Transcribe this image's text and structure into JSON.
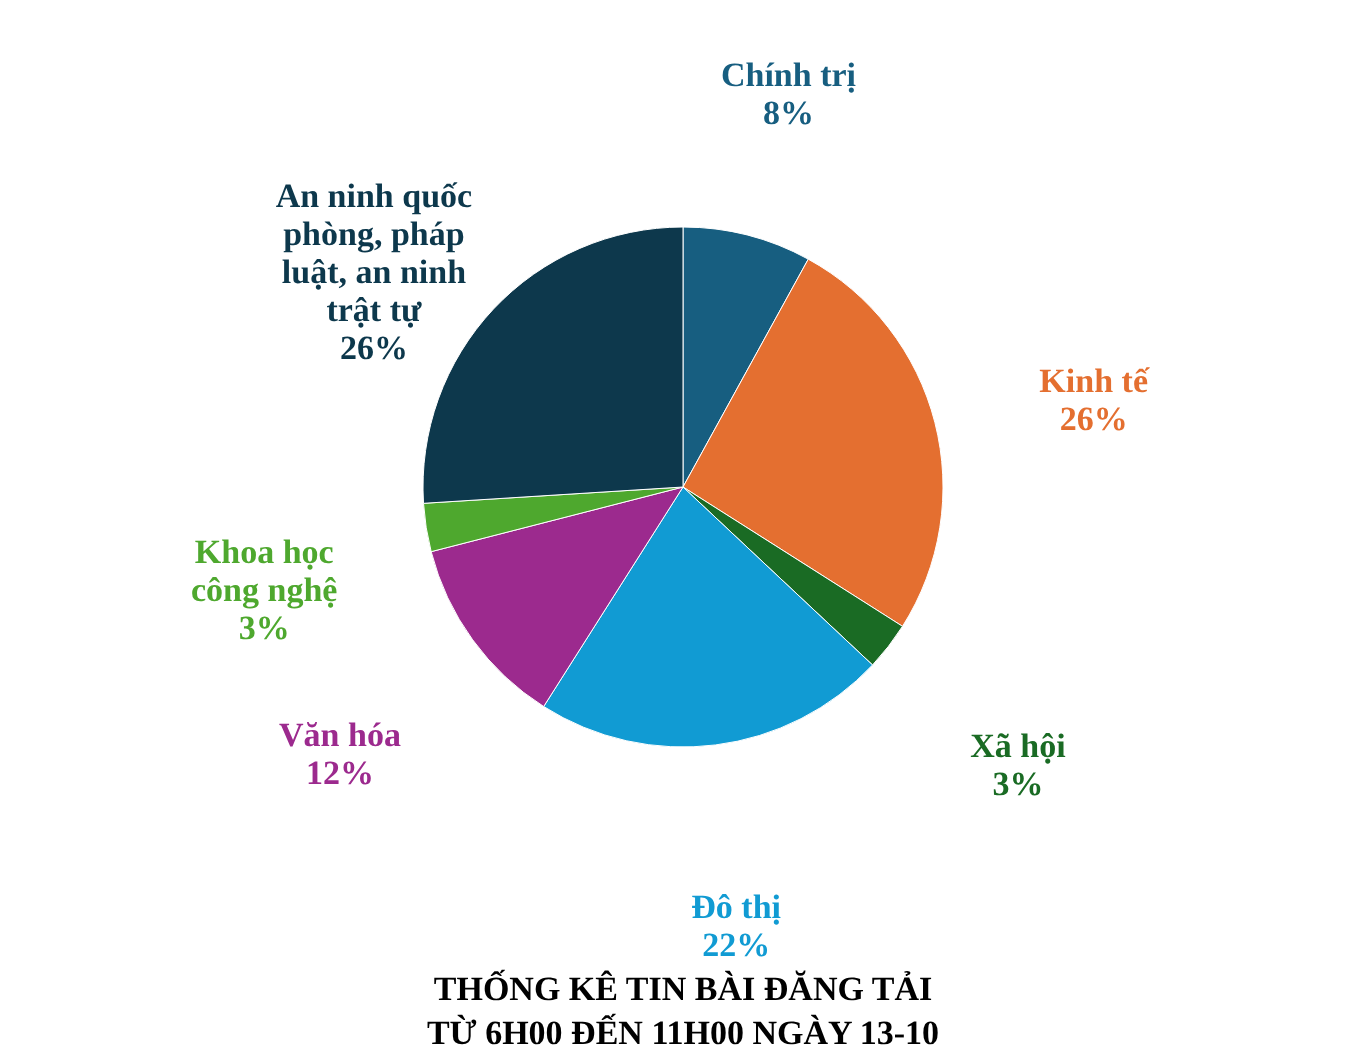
{
  "chart_data": {
    "type": "pie",
    "title": "THỐNG KÊ TIN BÀI ĐĂNG TẢI\nTỪ 6H00 ĐẾN 11H00 NGÀY 13-10",
    "categories": [
      "Chính trị",
      "Kinh tế",
      "Xã hội",
      "Đô thị",
      "Văn hóa",
      "Khoa học\ncông nghệ",
      "An ninh quốc\nphòng, pháp\nluật, an ninh\ntrật tự"
    ],
    "values": [
      8,
      26,
      3,
      22,
      12,
      3,
      26
    ],
    "colors": [
      "#175e80",
      "#e46f30",
      "#1a6b24",
      "#119bd3",
      "#9c2a8e",
      "#4ea82e",
      "#0d384c"
    ],
    "value_labels": [
      "8%",
      "26%",
      "3%",
      "22%",
      "12%",
      "3%",
      "26%"
    ],
    "legend": false
  }
}
